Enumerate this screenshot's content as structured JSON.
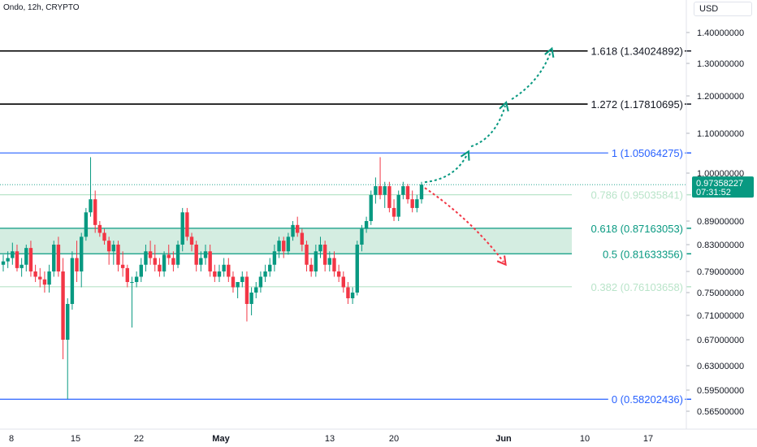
{
  "header": {
    "symbol_title": "Ondo, 12h, CRYPTO",
    "currency": "USD"
  },
  "chart_data": {
    "type": "candlestick",
    "ylim": [
      0.54,
      1.44
    ],
    "yticks": [
      "1.40000000",
      "1.30000000",
      "1.20000000",
      "1.10000000",
      "1.00000000",
      "0.89000000",
      "0.83000000",
      "0.79000000",
      "0.75000000",
      "0.71000000",
      "0.67000000",
      "0.63000000",
      "0.59500000",
      "0.56500000"
    ],
    "x_labels": [
      "8",
      "15",
      "22",
      "May",
      "13",
      "20",
      "Jun",
      "10",
      "17"
    ],
    "last_price": "0.97358227",
    "countdown": "07:31:52",
    "fib_levels": [
      {
        "label": "1.618 (1.34024892)",
        "value": 1.34024892,
        "color": "#000000"
      },
      {
        "label": "1.272 (1.17810695)",
        "value": 1.17810695,
        "color": "#000000"
      },
      {
        "label": "1 (1.05064275)",
        "value": 1.05064275,
        "color": "#2962ff"
      },
      {
        "label": "0.786 (0.95035841)",
        "value": 0.95035841,
        "color": "#b9e4c9"
      },
      {
        "label": "0.618 (0.87163053)",
        "value": 0.87163053,
        "color": "#089981"
      },
      {
        "label": "0.5 (0.81633356)",
        "value": 0.81633356,
        "color": "#089981"
      },
      {
        "label": "0.382 (0.76103658)",
        "value": 0.76103658,
        "color": "#b9e4c9"
      },
      {
        "label": "0 (0.58202436)",
        "value": 0.58202436,
        "color": "#2962ff"
      }
    ],
    "colors": {
      "up": "#089981",
      "down": "#f23645",
      "zone": "#d4ede1",
      "bull_arrow": "#089981",
      "bear_arrow": "#f23645"
    },
    "candles": [
      [
        0.8,
        0.815,
        0.79,
        0.805
      ],
      [
        0.805,
        0.82,
        0.795,
        0.81
      ],
      [
        0.81,
        0.835,
        0.8,
        0.82
      ],
      [
        0.82,
        0.83,
        0.79,
        0.795
      ],
      [
        0.795,
        0.81,
        0.78,
        0.8
      ],
      [
        0.8,
        0.83,
        0.79,
        0.825
      ],
      [
        0.825,
        0.84,
        0.78,
        0.79
      ],
      [
        0.79,
        0.8,
        0.77,
        0.78
      ],
      [
        0.78,
        0.795,
        0.76,
        0.775
      ],
      [
        0.775,
        0.79,
        0.75,
        0.765
      ],
      [
        0.765,
        0.8,
        0.75,
        0.79
      ],
      [
        0.79,
        0.84,
        0.78,
        0.83
      ],
      [
        0.83,
        0.85,
        0.78,
        0.79
      ],
      [
        0.79,
        0.81,
        0.64,
        0.67
      ],
      [
        0.67,
        0.74,
        0.582,
        0.73
      ],
      [
        0.73,
        0.82,
        0.72,
        0.81
      ],
      [
        0.81,
        0.84,
        0.77,
        0.79
      ],
      [
        0.79,
        0.86,
        0.76,
        0.85
      ],
      [
        0.85,
        0.92,
        0.84,
        0.91
      ],
      [
        0.91,
        1.04,
        0.9,
        0.94
      ],
      [
        0.94,
        0.96,
        0.86,
        0.88
      ],
      [
        0.88,
        0.89,
        0.85,
        0.86
      ],
      [
        0.86,
        0.87,
        0.83,
        0.84
      ],
      [
        0.84,
        0.85,
        0.8,
        0.82
      ],
      [
        0.82,
        0.84,
        0.8,
        0.83
      ],
      [
        0.83,
        0.84,
        0.79,
        0.8
      ],
      [
        0.8,
        0.82,
        0.78,
        0.795
      ],
      [
        0.795,
        0.8,
        0.76,
        0.77
      ],
      [
        0.77,
        0.78,
        0.69,
        0.77
      ],
      [
        0.77,
        0.79,
        0.76,
        0.78
      ],
      [
        0.78,
        0.81,
        0.77,
        0.8
      ],
      [
        0.8,
        0.83,
        0.79,
        0.82
      ],
      [
        0.82,
        0.84,
        0.8,
        0.81
      ],
      [
        0.81,
        0.83,
        0.79,
        0.8
      ],
      [
        0.8,
        0.81,
        0.78,
        0.79
      ],
      [
        0.79,
        0.82,
        0.78,
        0.815
      ],
      [
        0.815,
        0.83,
        0.8,
        0.81
      ],
      [
        0.81,
        0.82,
        0.79,
        0.8
      ],
      [
        0.8,
        0.84,
        0.795,
        0.83
      ],
      [
        0.83,
        0.92,
        0.82,
        0.91
      ],
      [
        0.91,
        0.92,
        0.84,
        0.85
      ],
      [
        0.85,
        0.86,
        0.82,
        0.83
      ],
      [
        0.83,
        0.84,
        0.79,
        0.8
      ],
      [
        0.8,
        0.82,
        0.79,
        0.81
      ],
      [
        0.81,
        0.83,
        0.8,
        0.82
      ],
      [
        0.82,
        0.83,
        0.78,
        0.79
      ],
      [
        0.79,
        0.8,
        0.77,
        0.78
      ],
      [
        0.78,
        0.8,
        0.77,
        0.79
      ],
      [
        0.79,
        0.81,
        0.78,
        0.8
      ],
      [
        0.8,
        0.81,
        0.77,
        0.78
      ],
      [
        0.78,
        0.79,
        0.75,
        0.76
      ],
      [
        0.76,
        0.77,
        0.74,
        0.77
      ],
      [
        0.77,
        0.79,
        0.76,
        0.78
      ],
      [
        0.78,
        0.79,
        0.7,
        0.73
      ],
      [
        0.73,
        0.76,
        0.71,
        0.75
      ],
      [
        0.75,
        0.77,
        0.74,
        0.76
      ],
      [
        0.76,
        0.79,
        0.75,
        0.78
      ],
      [
        0.78,
        0.8,
        0.77,
        0.79
      ],
      [
        0.79,
        0.81,
        0.78,
        0.8
      ],
      [
        0.8,
        0.83,
        0.79,
        0.82
      ],
      [
        0.82,
        0.85,
        0.81,
        0.84
      ],
      [
        0.84,
        0.85,
        0.81,
        0.82
      ],
      [
        0.82,
        0.86,
        0.815,
        0.85
      ],
      [
        0.85,
        0.89,
        0.84,
        0.88
      ],
      [
        0.88,
        0.9,
        0.85,
        0.86
      ],
      [
        0.86,
        0.87,
        0.82,
        0.83
      ],
      [
        0.83,
        0.84,
        0.79,
        0.8
      ],
      [
        0.8,
        0.81,
        0.78,
        0.79
      ],
      [
        0.79,
        0.83,
        0.78,
        0.82
      ],
      [
        0.82,
        0.85,
        0.81,
        0.83
      ],
      [
        0.83,
        0.84,
        0.79,
        0.8
      ],
      [
        0.8,
        0.82,
        0.79,
        0.81
      ],
      [
        0.81,
        0.82,
        0.78,
        0.79
      ],
      [
        0.79,
        0.8,
        0.77,
        0.78
      ],
      [
        0.78,
        0.79,
        0.75,
        0.76
      ],
      [
        0.76,
        0.77,
        0.73,
        0.74
      ],
      [
        0.74,
        0.76,
        0.73,
        0.75
      ],
      [
        0.75,
        0.84,
        0.745,
        0.83
      ],
      [
        0.83,
        0.88,
        0.82,
        0.87
      ],
      [
        0.87,
        0.9,
        0.86,
        0.89
      ],
      [
        0.89,
        0.96,
        0.88,
        0.95
      ],
      [
        0.95,
        0.99,
        0.93,
        0.97
      ],
      [
        0.97,
        1.04,
        0.94,
        0.95
      ],
      [
        0.95,
        0.98,
        0.92,
        0.97
      ],
      [
        0.97,
        0.98,
        0.91,
        0.92
      ],
      [
        0.92,
        0.94,
        0.89,
        0.9
      ],
      [
        0.9,
        0.96,
        0.89,
        0.95
      ],
      [
        0.95,
        0.98,
        0.94,
        0.97
      ],
      [
        0.97,
        0.975,
        0.93,
        0.94
      ],
      [
        0.94,
        0.96,
        0.91,
        0.92
      ],
      [
        0.92,
        0.95,
        0.91,
        0.94
      ],
      [
        0.94,
        0.98,
        0.93,
        0.97358227
      ]
    ]
  }
}
